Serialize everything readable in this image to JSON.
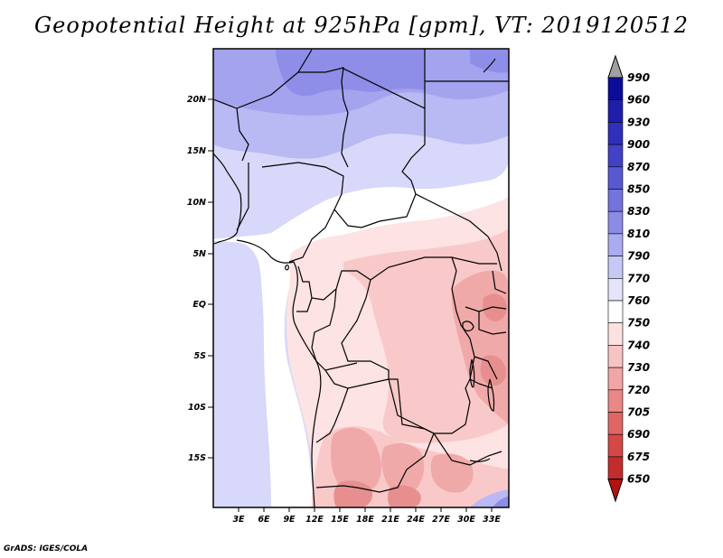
{
  "title": "Geopotential Height at 925hPa [gpm], VT: 2019120512",
  "credit": "GrADS: IGES/COLA",
  "map": {
    "lat_ticks": [
      "20N",
      "15N",
      "10N",
      "5N",
      "EQ",
      "5S",
      "10S",
      "15S"
    ],
    "lon_ticks": [
      "3E",
      "6E",
      "9E",
      "12E",
      "15E",
      "18E",
      "21E",
      "24E",
      "27E",
      "30E",
      "33E"
    ]
  },
  "colorbar": {
    "labels": [
      "990",
      "960",
      "930",
      "900",
      "870",
      "850",
      "830",
      "810",
      "790",
      "770",
      "760",
      "750",
      "740",
      "730",
      "720",
      "705",
      "690",
      "675",
      "650"
    ],
    "colors": [
      "#a0a0a0",
      "#0c0c9a",
      "#1e1eab",
      "#2f2fbb",
      "#4242c8",
      "#5858d2",
      "#7474dd",
      "#8c8ce6",
      "#ababf0",
      "#c8c8f7",
      "#e4e4fb",
      "#ffffff",
      "#fde1e1",
      "#f8c3c3",
      "#f1a6a6",
      "#e98787",
      "#e06666",
      "#d44848",
      "#c42c2c",
      "#b11313"
    ]
  },
  "chart_data": {
    "type": "heatmap",
    "title": "Geopotential Height at 925hPa [gpm], VT: 2019120512",
    "variable": "Geopotential Height",
    "level": "925hPa",
    "units": "gpm",
    "valid_time": "2019120512",
    "lat_ticks": [
      "20N",
      "15N",
      "10N",
      "5N",
      "EQ",
      "5S",
      "10S",
      "15S"
    ],
    "lon_ticks": [
      "3E",
      "6E",
      "9E",
      "12E",
      "15E",
      "18E",
      "21E",
      "24E",
      "27E",
      "30E",
      "33E"
    ],
    "levels": [
      990,
      960,
      930,
      900,
      870,
      850,
      830,
      810,
      790,
      770,
      760,
      750,
      740,
      730,
      720,
      705,
      690,
      675,
      650
    ]
  }
}
